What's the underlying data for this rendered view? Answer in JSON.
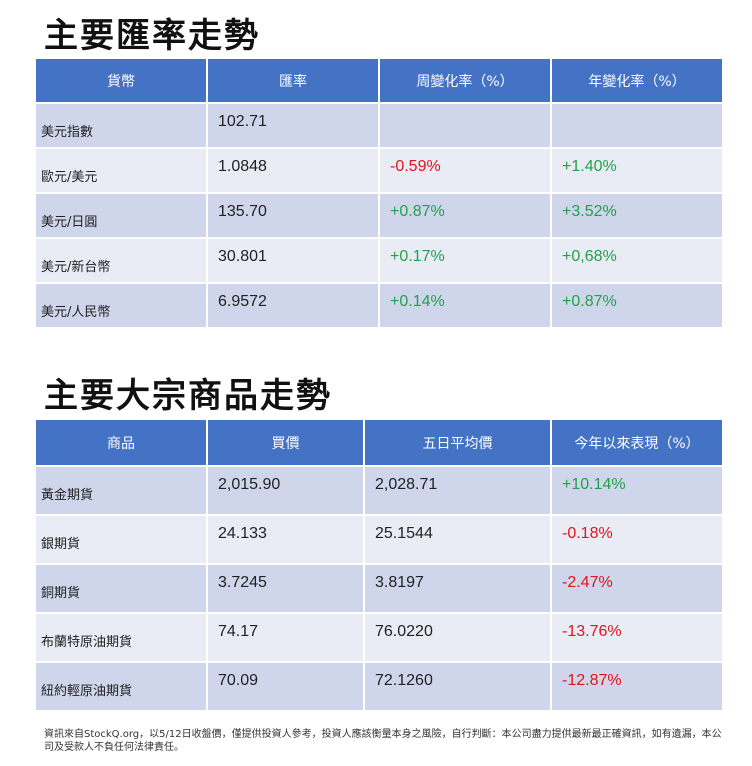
{
  "fx": {
    "title": "主要匯率走勢",
    "headers": [
      "貨幣",
      "匯率",
      "周變化率（%）",
      "年變化率（%）"
    ],
    "rows": [
      [
        "美元指數",
        "102.71",
        "",
        ""
      ],
      [
        "歐元/美元",
        "1.0848",
        "-0.59%",
        "+1.40%"
      ],
      [
        "美元/日圓",
        "135.70",
        "+0.87%",
        "+3.52%"
      ],
      [
        "美元/新台幣",
        "30.801",
        "+0.17%",
        "+0,68%"
      ],
      [
        "美元/人民幣",
        "6.9572",
        "+0.14%",
        "+0.87%"
      ]
    ]
  },
  "commodities": {
    "title": "主要大宗商品走勢",
    "headers": [
      "商品",
      "買價",
      "五日平均價",
      "今年以來表現（%）"
    ],
    "rows": [
      [
        "黃金期貨",
        "2,015.90",
        "2,028.71",
        "+10.14%"
      ],
      [
        "銀期貨",
        "24.133",
        "25.1544",
        "-0.18%"
      ],
      [
        "銅期貨",
        "3.7245",
        "3.8197",
        "-2.47%"
      ],
      [
        "布蘭特原油期貨",
        "74.17",
        "76.0220",
        "-13.76%"
      ],
      [
        "紐約輕原油期貨",
        "70.09",
        "72.1260",
        "-12.87%"
      ]
    ]
  },
  "footnote": "資訊來自StockQ.org，以5/12日收盤價，僅提供投資人參考，投資人應該衡量本身之風險，自行判斷：本公司盡力提供最新最正確資訊，如有遺漏，本公司及受款人不負任何法律責任。",
  "colors": {
    "header_bg": "#4472c4",
    "row_odd": "#cfd5ea",
    "row_even": "#e9ebf5",
    "negative": "#e0141e",
    "positive": "#1fa34a"
  }
}
